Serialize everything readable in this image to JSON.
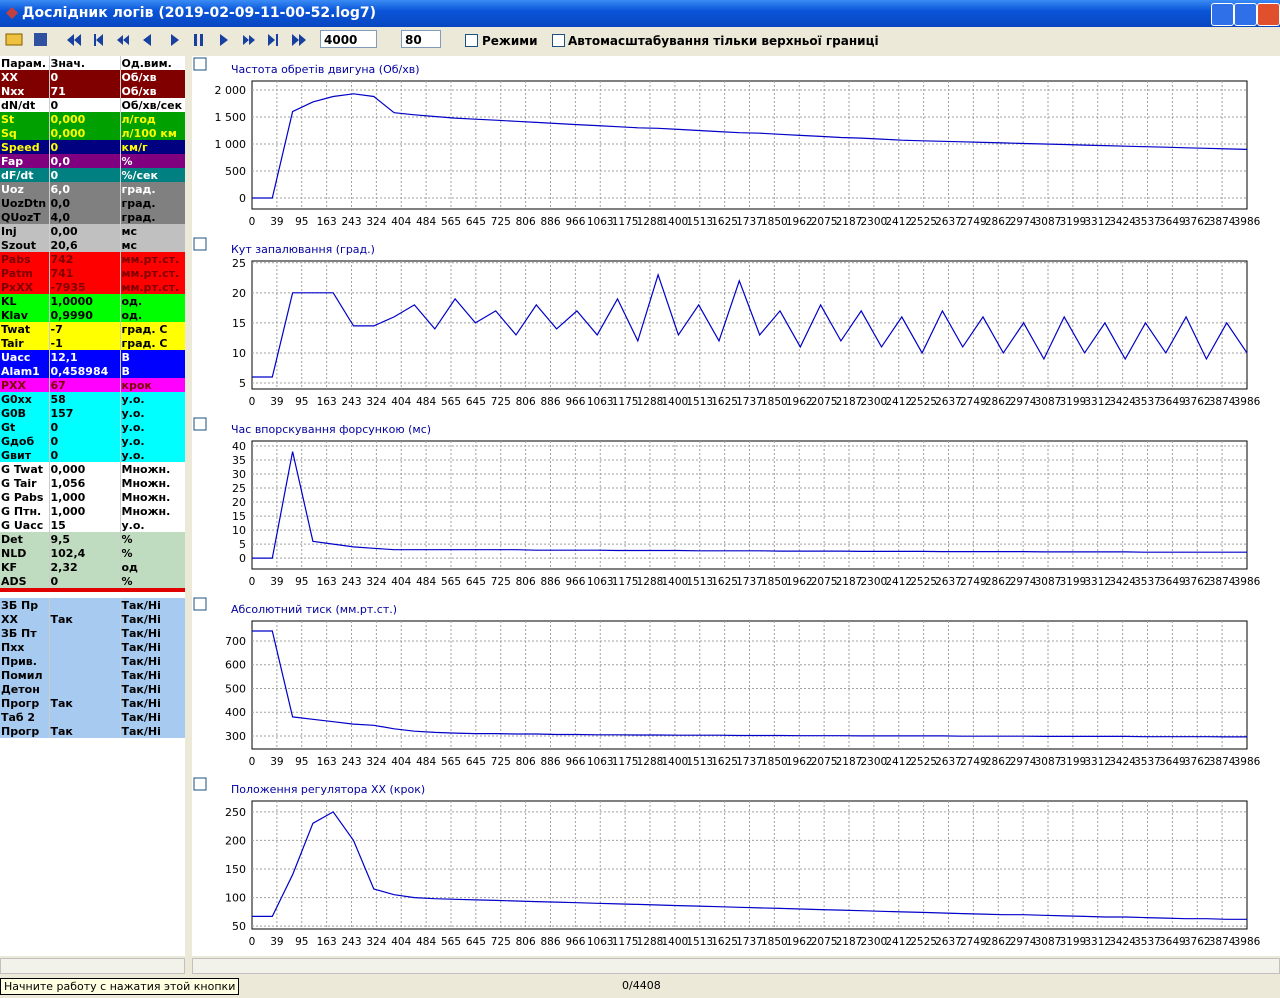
{
  "window": {
    "title": "Дослідник логів (2019-02-09-11-00-52.log7)"
  },
  "toolbar": {
    "window_size": "4000",
    "step": "80",
    "modes_label": "Режими",
    "autoscale_label": "Автомасштабування тільки верхньої границі"
  },
  "params": {
    "header": [
      "Парам.",
      "Знач.",
      "Од.вим."
    ],
    "rows": [
      {
        "name": "XX",
        "value": "0",
        "unit": "Об/хв",
        "bg": "#800000",
        "fg": "#ffffff"
      },
      {
        "name": "Nxx",
        "value": "71",
        "unit": "Об/хв",
        "bg": "#800000",
        "fg": "#ffffff"
      },
      {
        "name": "dN/dt",
        "value": "0",
        "unit": "Об/хв/сек",
        "bg": "#ffffff",
        "fg": "#000000"
      },
      {
        "name": "St",
        "value": "0,000",
        "unit": "л/год",
        "bg": "#00a000",
        "fg": "#ffff00"
      },
      {
        "name": "Sq",
        "value": "0,000",
        "unit": "л/100 км",
        "bg": "#00a000",
        "fg": "#ffff00"
      },
      {
        "name": "Speed",
        "value": "0",
        "unit": "км/г",
        "bg": "#000080",
        "fg": "#ffff00"
      },
      {
        "name": "Fap",
        "value": "0,0",
        "unit": "%",
        "bg": "#800080",
        "fg": "#ffffff"
      },
      {
        "name": "dF/dt",
        "value": "0",
        "unit": "%/сек",
        "bg": "#008080",
        "fg": "#ffffff"
      },
      {
        "name": "Uoz",
        "value": "6,0",
        "unit": "град.",
        "bg": "#808080",
        "fg": "#ffffff"
      },
      {
        "name": "UozDtn",
        "value": "0,0",
        "unit": "град.",
        "bg": "#808080",
        "fg": "#000000"
      },
      {
        "name": "QUozT",
        "value": "4,0",
        "unit": "град.",
        "bg": "#808080",
        "fg": "#000000"
      },
      {
        "name": "Inj",
        "value": "0,00",
        "unit": "мс",
        "bg": "#c0c0c0",
        "fg": "#000000"
      },
      {
        "name": "Szout",
        "value": "20,6",
        "unit": "мс",
        "bg": "#c0c0c0",
        "fg": "#000000"
      },
      {
        "name": "Pabs",
        "value": "742",
        "unit": "мм.рт.ст.",
        "bg": "#ff0000",
        "fg": "#800000"
      },
      {
        "name": "Patm",
        "value": "741",
        "unit": "мм.рт.ст.",
        "bg": "#ff0000",
        "fg": "#800000"
      },
      {
        "name": "PxXX",
        "value": "-7935",
        "unit": "мм.рт.ст.",
        "bg": "#ff0000",
        "fg": "#800000"
      },
      {
        "name": "KL",
        "value": "1,0000",
        "unit": "од.",
        "bg": "#00ff00",
        "fg": "#000000"
      },
      {
        "name": "Klav",
        "value": "0,9990",
        "unit": "од.",
        "bg": "#00ff00",
        "fg": "#000000"
      },
      {
        "name": "Twat",
        "value": "-7",
        "unit": "град. С",
        "bg": "#ffff00",
        "fg": "#000000"
      },
      {
        "name": "Tair",
        "value": "-1",
        "unit": "град. С",
        "bg": "#ffff00",
        "fg": "#000000"
      },
      {
        "name": "Uacc",
        "value": "12,1",
        "unit": "В",
        "bg": "#0000ff",
        "fg": "#ffffff"
      },
      {
        "name": "Alam1",
        "value": "0,458984",
        "unit": "В",
        "bg": "#0000ff",
        "fg": "#ffffff"
      },
      {
        "name": "PXX",
        "value": "67",
        "unit": "крок",
        "bg": "#ff00ff",
        "fg": "#800000"
      },
      {
        "name": "G0xx",
        "value": "58",
        "unit": "у.о.",
        "bg": "#00ffff",
        "fg": "#000000"
      },
      {
        "name": "G0B",
        "value": "157",
        "unit": "у.о.",
        "bg": "#00ffff",
        "fg": "#000000"
      },
      {
        "name": "Gt",
        "value": "0",
        "unit": "у.о.",
        "bg": "#00ffff",
        "fg": "#000000"
      },
      {
        "name": "Gдоб",
        "value": "0",
        "unit": "у.о.",
        "bg": "#00ffff",
        "fg": "#000000"
      },
      {
        "name": "Gвит",
        "value": "0",
        "unit": "у.о.",
        "bg": "#00ffff",
        "fg": "#000000"
      },
      {
        "name": "G Twat",
        "value": "0,000",
        "unit": "Множн.",
        "bg": "#ffffff",
        "fg": "#000000"
      },
      {
        "name": "G Tair",
        "value": "1,056",
        "unit": "Множн.",
        "bg": "#ffffff",
        "fg": "#000000"
      },
      {
        "name": "G Pabs",
        "value": "1,000",
        "unit": "Множн.",
        "bg": "#ffffff",
        "fg": "#000000"
      },
      {
        "name": "G Птн.",
        "value": "1,000",
        "unit": "Множн.",
        "bg": "#ffffff",
        "fg": "#000000"
      },
      {
        "name": "G Uacc",
        "value": "15",
        "unit": "у.о.",
        "bg": "#ffffff",
        "fg": "#000000"
      },
      {
        "name": "Det",
        "value": "9,5",
        "unit": "%",
        "bg": "#c0dcc0",
        "fg": "#000000"
      },
      {
        "name": "NLD",
        "value": "102,4",
        "unit": "%",
        "bg": "#c0dcc0",
        "fg": "#000000"
      },
      {
        "name": "KF",
        "value": "2,32",
        "unit": "од",
        "bg": "#c0dcc0",
        "fg": "#000000"
      },
      {
        "name": "ADS",
        "value": "0",
        "unit": "%",
        "bg": "#c0dcc0",
        "fg": "#000000"
      }
    ],
    "flags": [
      {
        "name": "ЗБ Пр",
        "unit": "Так/Ні"
      },
      {
        "name": "ХХ",
        "value": "Так",
        "unit": "Так/Ні"
      },
      {
        "name": "ЗБ Пт",
        "unit": "Так/Ні"
      },
      {
        "name": "Пхх",
        "unit": "Так/Ні"
      },
      {
        "name": "Прив.",
        "unit": "Так/Ні"
      },
      {
        "name": "Помил",
        "unit": "Так/Ні"
      },
      {
        "name": "Детон",
        "unit": "Так/Ні"
      },
      {
        "name": "Прогр",
        "value": "Так",
        "unit": "Так/Ні"
      },
      {
        "name": "Таб 2",
        "unit": "Так/Ні"
      },
      {
        "name": "Прогр",
        "value": "Так",
        "unit": "Так/Ні"
      }
    ],
    "flags_bg": "#a6caf0"
  },
  "status": {
    "hint": "Начните работу с нажатия этой кнопки",
    "position": "0/4408"
  },
  "chart_data": [
    {
      "type": "line",
      "title": "Частота обретів двигуна (Об/хв)",
      "ylim": [
        -204,
        2167
      ],
      "yticks": [
        0,
        500,
        {
          "value": 1000,
          "label": "1 000"
        },
        {
          "value": 1500,
          "label": "1 500"
        },
        {
          "value": 2000,
          "label": "2 000"
        }
      ],
      "xticks": [
        0,
        39,
        95,
        163,
        243,
        324,
        404,
        484,
        565,
        645,
        725,
        806,
        886,
        966,
        1063,
        1175,
        1288,
        1400,
        1513,
        1625,
        1737,
        1850,
        1962,
        2075,
        2187,
        2300,
        2412,
        2525,
        2637,
        2749,
        2862,
        2974,
        3087,
        3199,
        3312,
        3424,
        3537,
        3649,
        3762,
        3874,
        3986
      ],
      "grid": true,
      "series": [
        {
          "color": "#0000c8",
          "values": [
            0,
            0,
            1600,
            1780,
            1880,
            1930,
            1880,
            1580,
            1540,
            1510,
            1480,
            1460,
            1440,
            1420,
            1400,
            1380,
            1360,
            1340,
            1320,
            1300,
            1290,
            1270,
            1250,
            1230,
            1210,
            1200,
            1180,
            1160,
            1140,
            1120,
            1110,
            1090,
            1070,
            1060,
            1050,
            1040,
            1030,
            1020,
            1010,
            1000,
            990,
            980,
            970,
            960,
            950,
            940,
            930,
            920,
            910,
            900
          ]
        }
      ]
    },
    {
      "type": "line",
      "title": "Кут запалювання (град.)",
      "ylim": [
        4,
        25.3
      ],
      "yticks": [
        5,
        10,
        15,
        20,
        25
      ],
      "xticks": [
        0,
        39,
        95,
        163,
        243,
        324,
        404,
        484,
        565,
        645,
        725,
        806,
        886,
        966,
        1063,
        1175,
        1288,
        1400,
        1513,
        1625,
        1737,
        1850,
        1962,
        2075,
        2187,
        2300,
        2412,
        2525,
        2637,
        2749,
        2862,
        2974,
        3087,
        3199,
        3312,
        3424,
        3537,
        3649,
        3762,
        3874,
        3986
      ],
      "grid": true,
      "series": [
        {
          "color": "#0000c8",
          "values": [
            6,
            6,
            20,
            20,
            20,
            14.5,
            14.5,
            16,
            18,
            14,
            19,
            15,
            17,
            13,
            18,
            14,
            17,
            13,
            19,
            12,
            23,
            13,
            18,
            12,
            22,
            13,
            17,
            11,
            18,
            12,
            17,
            11,
            16,
            10,
            17,
            11,
            16,
            10,
            15,
            9,
            16,
            10,
            15,
            9,
            15,
            10,
            16,
            9,
            15,
            10
          ]
        }
      ]
    },
    {
      "type": "line",
      "title": "Час впорскування форсункою (мс)",
      "ylim": [
        -3.9,
        41.8
      ],
      "yticks": [
        0,
        5,
        10,
        15,
        20,
        25,
        30,
        35,
        40
      ],
      "xticks": [
        0,
        39,
        95,
        163,
        243,
        324,
        404,
        484,
        565,
        645,
        725,
        806,
        886,
        966,
        1063,
        1175,
        1288,
        1400,
        1513,
        1625,
        1737,
        1850,
        1962,
        2075,
        2187,
        2300,
        2412,
        2525,
        2637,
        2749,
        2862,
        2974,
        3087,
        3199,
        3312,
        3424,
        3537,
        3649,
        3762,
        3874,
        3986
      ],
      "grid": true,
      "series": [
        {
          "color": "#0000c8",
          "values": [
            0,
            0,
            38,
            6,
            5,
            4,
            3.5,
            3,
            3,
            3,
            3,
            3,
            3,
            3,
            2.8,
            2.8,
            2.8,
            2.8,
            2.7,
            2.7,
            2.7,
            2.7,
            2.6,
            2.6,
            2.6,
            2.6,
            2.5,
            2.5,
            2.5,
            2.5,
            2.4,
            2.4,
            2.4,
            2.4,
            2.3,
            2.3,
            2.3,
            2.3,
            2.3,
            2.2,
            2.2,
            2.2,
            2.2,
            2.2,
            2.1,
            2.1,
            2.1,
            2.1,
            2.1,
            2.1
          ]
        }
      ]
    },
    {
      "type": "line",
      "title": "Абсолютний тиск (мм.рт.ст.)",
      "ylim": [
        245,
        784
      ],
      "yticks": [
        300,
        400,
        500,
        600,
        700
      ],
      "xticks": [
        0,
        39,
        95,
        163,
        243,
        324,
        404,
        484,
        565,
        645,
        725,
        806,
        886,
        966,
        1063,
        1175,
        1288,
        1400,
        1513,
        1625,
        1737,
        1850,
        1962,
        2075,
        2187,
        2300,
        2412,
        2525,
        2637,
        2749,
        2862,
        2974,
        3087,
        3199,
        3312,
        3424,
        3537,
        3649,
        3762,
        3874,
        3986
      ],
      "grid": true,
      "series": [
        {
          "color": "#0000c8",
          "values": [
            742,
            742,
            380,
            370,
            360,
            350,
            345,
            330,
            320,
            315,
            312,
            310,
            310,
            308,
            308,
            306,
            306,
            305,
            305,
            304,
            304,
            303,
            303,
            303,
            302,
            302,
            302,
            301,
            301,
            301,
            300,
            300,
            300,
            300,
            300,
            299,
            299,
            299,
            299,
            298,
            298,
            298,
            298,
            298,
            297,
            297,
            297,
            297,
            296,
            296
          ]
        }
      ]
    },
    {
      "type": "line",
      "title": "Положення регулятора ХХ (крок)",
      "ylim": [
        45,
        269
      ],
      "yticks": [
        50,
        100,
        150,
        200,
        250
      ],
      "xticks": [
        0,
        39,
        95,
        163,
        243,
        324,
        404,
        484,
        565,
        645,
        725,
        806,
        886,
        966,
        1063,
        1175,
        1288,
        1400,
        1513,
        1625,
        1737,
        1850,
        1962,
        2075,
        2187,
        2300,
        2412,
        2525,
        2637,
        2749,
        2862,
        2974,
        3087,
        3199,
        3312,
        3424,
        3537,
        3649,
        3762,
        3874,
        3986
      ],
      "grid": true,
      "series": [
        {
          "color": "#0000c8",
          "values": [
            67,
            67,
            140,
            230,
            250,
            200,
            115,
            105,
            100,
            98,
            97,
            96,
            95,
            94,
            93,
            92,
            91,
            90,
            89,
            88,
            87,
            86,
            85,
            84,
            83,
            82,
            81,
            80,
            79,
            78,
            77,
            76,
            75,
            74,
            73,
            72,
            71,
            70,
            70,
            69,
            68,
            67,
            66,
            66,
            65,
            64,
            63,
            63,
            62,
            62
          ]
        }
      ]
    }
  ]
}
